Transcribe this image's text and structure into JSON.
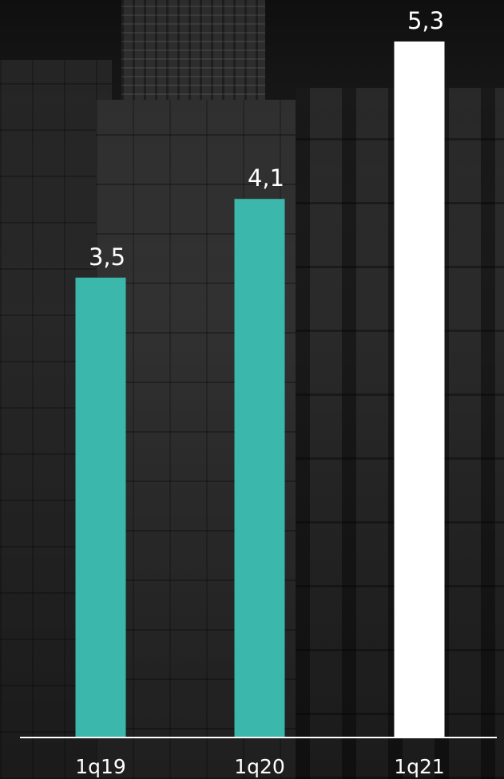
{
  "chart_data": {
    "type": "bar",
    "categories": [
      "1q19",
      "1q20",
      "1q21"
    ],
    "values": [
      3.5,
      4.1,
      5.3
    ],
    "value_labels": [
      "3,5",
      "4,1",
      "5,3"
    ],
    "title": "",
    "xlabel": "",
    "ylabel": "",
    "ylim": [
      0,
      5.3
    ],
    "grid": false,
    "legend": "none",
    "bar_colors": [
      "#3bb8ab",
      "#3bb8ab",
      "#ffffff"
    ],
    "axis_color": "#ffffff",
    "label_color": "#ffffff"
  },
  "background": {
    "description_icon": "city-buildings-photo",
    "base_color": "#1c1c1c"
  }
}
